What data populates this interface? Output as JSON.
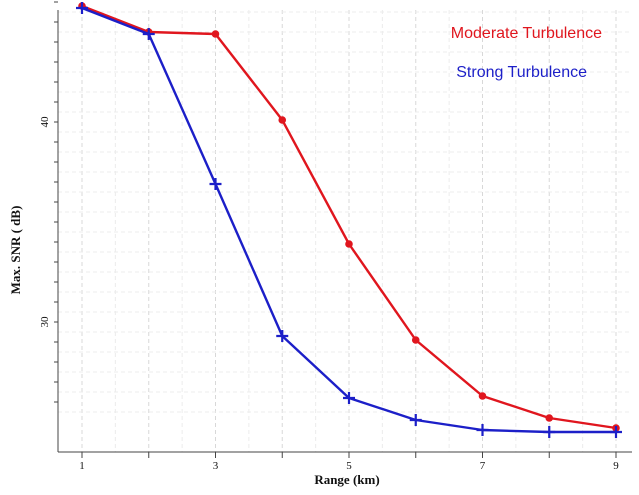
{
  "chart_data": {
    "type": "line",
    "title": "",
    "xlabel": "Range (km)",
    "ylabel": "Max. SNR ( dB)",
    "xlim": [
      1,
      9
    ],
    "ylim": [
      25.5,
      46.5
    ],
    "x_ticks": [
      1,
      3,
      5,
      7,
      9
    ],
    "y_ticks": [
      30,
      40
    ],
    "grid": true,
    "legend_position": "top-right",
    "series": [
      {
        "name": "Moderate Turbulence",
        "color": "#e0161e",
        "marker": "dot",
        "x": [
          1,
          2,
          3,
          4,
          5,
          6,
          7,
          8,
          9
        ],
        "y": [
          45.8,
          44.5,
          44.4,
          40.1,
          33.9,
          29.1,
          26.3,
          25.2,
          24.7
        ]
      },
      {
        "name": "Strong Turbulence",
        "color": "#1c1fc8",
        "marker": "plus",
        "x": [
          1,
          2,
          3,
          4,
          5,
          6,
          7,
          8,
          9
        ],
        "y": [
          45.7,
          44.4,
          36.9,
          29.3,
          26.2,
          25.1,
          24.6,
          24.5,
          24.5
        ]
      }
    ]
  }
}
